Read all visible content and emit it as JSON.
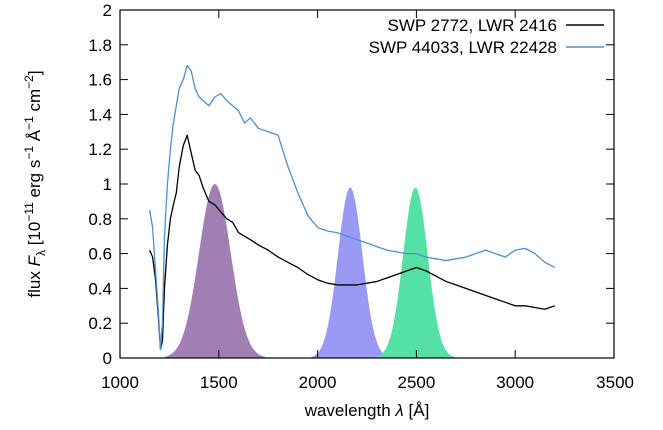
{
  "chart_data": {
    "type": "line",
    "xlabel_text": "wavelength ",
    "xlabel_symbol": "λ",
    "xlabel_unit": " [Å]",
    "ylabel_prefix": "flux ",
    "ylabel_symbol": "F",
    "ylabel_sub": "λ",
    "ylabel_unit_a": " [10",
    "ylabel_exp1": "−11",
    "ylabel_unit_b": " erg s",
    "ylabel_exp2": "−1",
    "ylabel_unit_c": " Å",
    "ylabel_exp3": "−1",
    "ylabel_unit_d": " cm",
    "ylabel_exp4": "−2",
    "ylabel_unit_e": "]",
    "xlim": [
      1000,
      3500
    ],
    "ylim": [
      0,
      2
    ],
    "xticks": [
      1000,
      1500,
      2000,
      2500,
      3000,
      3500
    ],
    "yticks": [
      0,
      0.2,
      0.4,
      0.6,
      0.8,
      1,
      1.2,
      1.4,
      1.6,
      1.8,
      2
    ],
    "grid": false,
    "legend_position": "top-right",
    "series": [
      {
        "name": "SWP 2772, LWR 2416",
        "color": "#000000",
        "x": [
          1150,
          1165,
          1180,
          1195,
          1205,
          1215,
          1225,
          1240,
          1255,
          1270,
          1285,
          1300,
          1320,
          1340,
          1360,
          1380,
          1400,
          1420,
          1450,
          1480,
          1510,
          1540,
          1570,
          1600,
          1630,
          1660,
          1700,
          1750,
          1800,
          1850,
          1900,
          1950,
          2000,
          2050,
          2100,
          2150,
          2200,
          2250,
          2300,
          2350,
          2400,
          2450,
          2500,
          2550,
          2600,
          2650,
          2700,
          2750,
          2800,
          2850,
          2900,
          2950,
          3000,
          3050,
          3100,
          3150,
          3200
        ],
        "y": [
          0.62,
          0.58,
          0.45,
          0.22,
          0.05,
          0.1,
          0.4,
          0.65,
          0.8,
          0.88,
          0.95,
          1.1,
          1.22,
          1.28,
          1.18,
          1.08,
          1.05,
          0.98,
          0.9,
          0.88,
          0.84,
          0.8,
          0.78,
          0.72,
          0.7,
          0.68,
          0.65,
          0.62,
          0.58,
          0.55,
          0.52,
          0.48,
          0.45,
          0.43,
          0.42,
          0.42,
          0.42,
          0.43,
          0.44,
          0.46,
          0.48,
          0.5,
          0.52,
          0.5,
          0.47,
          0.44,
          0.42,
          0.4,
          0.38,
          0.36,
          0.34,
          0.32,
          0.3,
          0.3,
          0.29,
          0.28,
          0.3
        ]
      },
      {
        "name": "SWP 44033, LWR 22428",
        "color": "#4f8fcf",
        "x": [
          1150,
          1165,
          1180,
          1195,
          1205,
          1215,
          1225,
          1240,
          1255,
          1270,
          1285,
          1300,
          1320,
          1340,
          1360,
          1380,
          1400,
          1420,
          1450,
          1480,
          1510,
          1540,
          1570,
          1600,
          1630,
          1660,
          1700,
          1750,
          1800,
          1850,
          1900,
          1950,
          2000,
          2050,
          2100,
          2150,
          2200,
          2250,
          2300,
          2350,
          2400,
          2450,
          2500,
          2550,
          2600,
          2650,
          2700,
          2750,
          2800,
          2850,
          2900,
          2950,
          3000,
          3050,
          3100,
          3150,
          3200
        ],
        "y": [
          0.85,
          0.75,
          0.5,
          0.25,
          0.05,
          0.2,
          0.7,
          1.0,
          1.2,
          1.35,
          1.45,
          1.55,
          1.6,
          1.68,
          1.65,
          1.55,
          1.5,
          1.48,
          1.45,
          1.5,
          1.52,
          1.48,
          1.45,
          1.42,
          1.35,
          1.38,
          1.32,
          1.3,
          1.28,
          1.1,
          0.95,
          0.82,
          0.75,
          0.73,
          0.72,
          0.7,
          0.68,
          0.66,
          0.64,
          0.62,
          0.61,
          0.6,
          0.6,
          0.58,
          0.57,
          0.56,
          0.57,
          0.58,
          0.6,
          0.62,
          0.6,
          0.58,
          0.62,
          0.63,
          0.6,
          0.55,
          0.52
        ]
      }
    ],
    "filter_bands": [
      {
        "center": 1480,
        "sigma": 80,
        "peak": 1.0,
        "color": "#a07fb5"
      },
      {
        "center": 2165,
        "sigma": 62,
        "peak": 0.98,
        "color": "#9a9af5"
      },
      {
        "center": 2495,
        "sigma": 62,
        "peak": 0.98,
        "color": "#55e0a5"
      }
    ]
  }
}
